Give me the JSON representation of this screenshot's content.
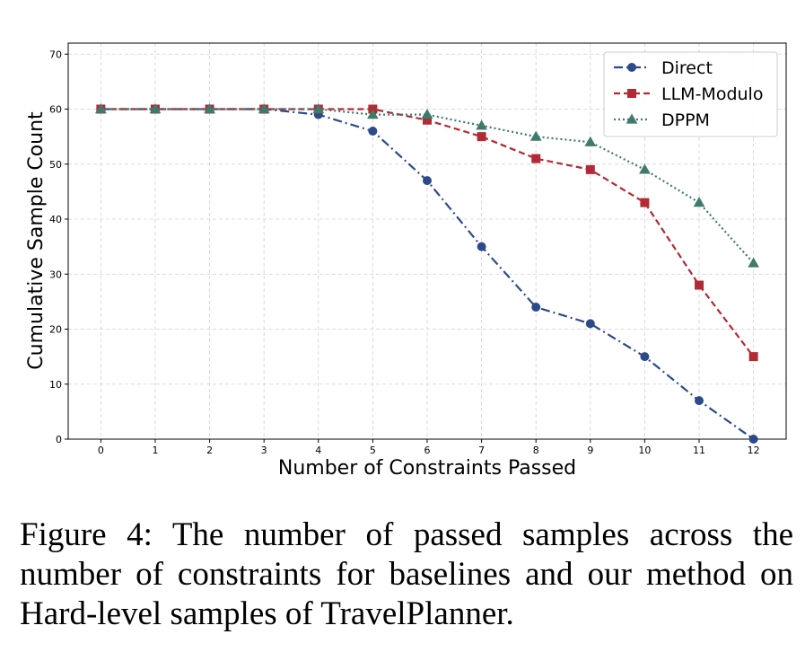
{
  "chart_data": {
    "type": "line",
    "title": "",
    "xlabel": "Number of Constraints Passed",
    "ylabel": "Cumulative Sample Count",
    "x": [
      0,
      1,
      2,
      3,
      4,
      5,
      6,
      7,
      8,
      9,
      10,
      11,
      12
    ],
    "xticks": [
      "0",
      "1",
      "2",
      "3",
      "4",
      "5",
      "6",
      "7",
      "8",
      "9",
      "10",
      "11",
      "12"
    ],
    "yticks": [
      "0",
      "10",
      "20",
      "30",
      "40",
      "50",
      "60",
      "70"
    ],
    "xlim": [
      -0.6,
      12.6
    ],
    "ylim": [
      0,
      72
    ],
    "grid": true,
    "legend_position": "top-right",
    "series": [
      {
        "name": "Direct",
        "color": "#2c4a8a",
        "linestyle": "dashdot",
        "marker": "circle",
        "values": [
          60,
          60,
          60,
          60,
          59,
          56,
          47,
          35,
          24,
          21,
          15,
          7,
          0
        ]
      },
      {
        "name": "LLM-Modulo",
        "color": "#b22a35",
        "linestyle": "dashed",
        "marker": "square",
        "values": [
          60,
          60,
          60,
          60,
          60,
          60,
          58,
          55,
          51,
          49,
          43,
          28,
          15
        ]
      },
      {
        "name": "DPPM",
        "color": "#3f7a6c",
        "linestyle": "dotted",
        "marker": "triangle",
        "values": [
          60,
          60,
          60,
          60,
          60,
          59,
          59,
          57,
          55,
          54,
          49,
          43,
          32
        ]
      }
    ]
  },
  "caption": {
    "text": "Figure 4: The number of passed samples across the number of constraints for baselines and our method on Hard-level samples of TravelPlanner."
  }
}
